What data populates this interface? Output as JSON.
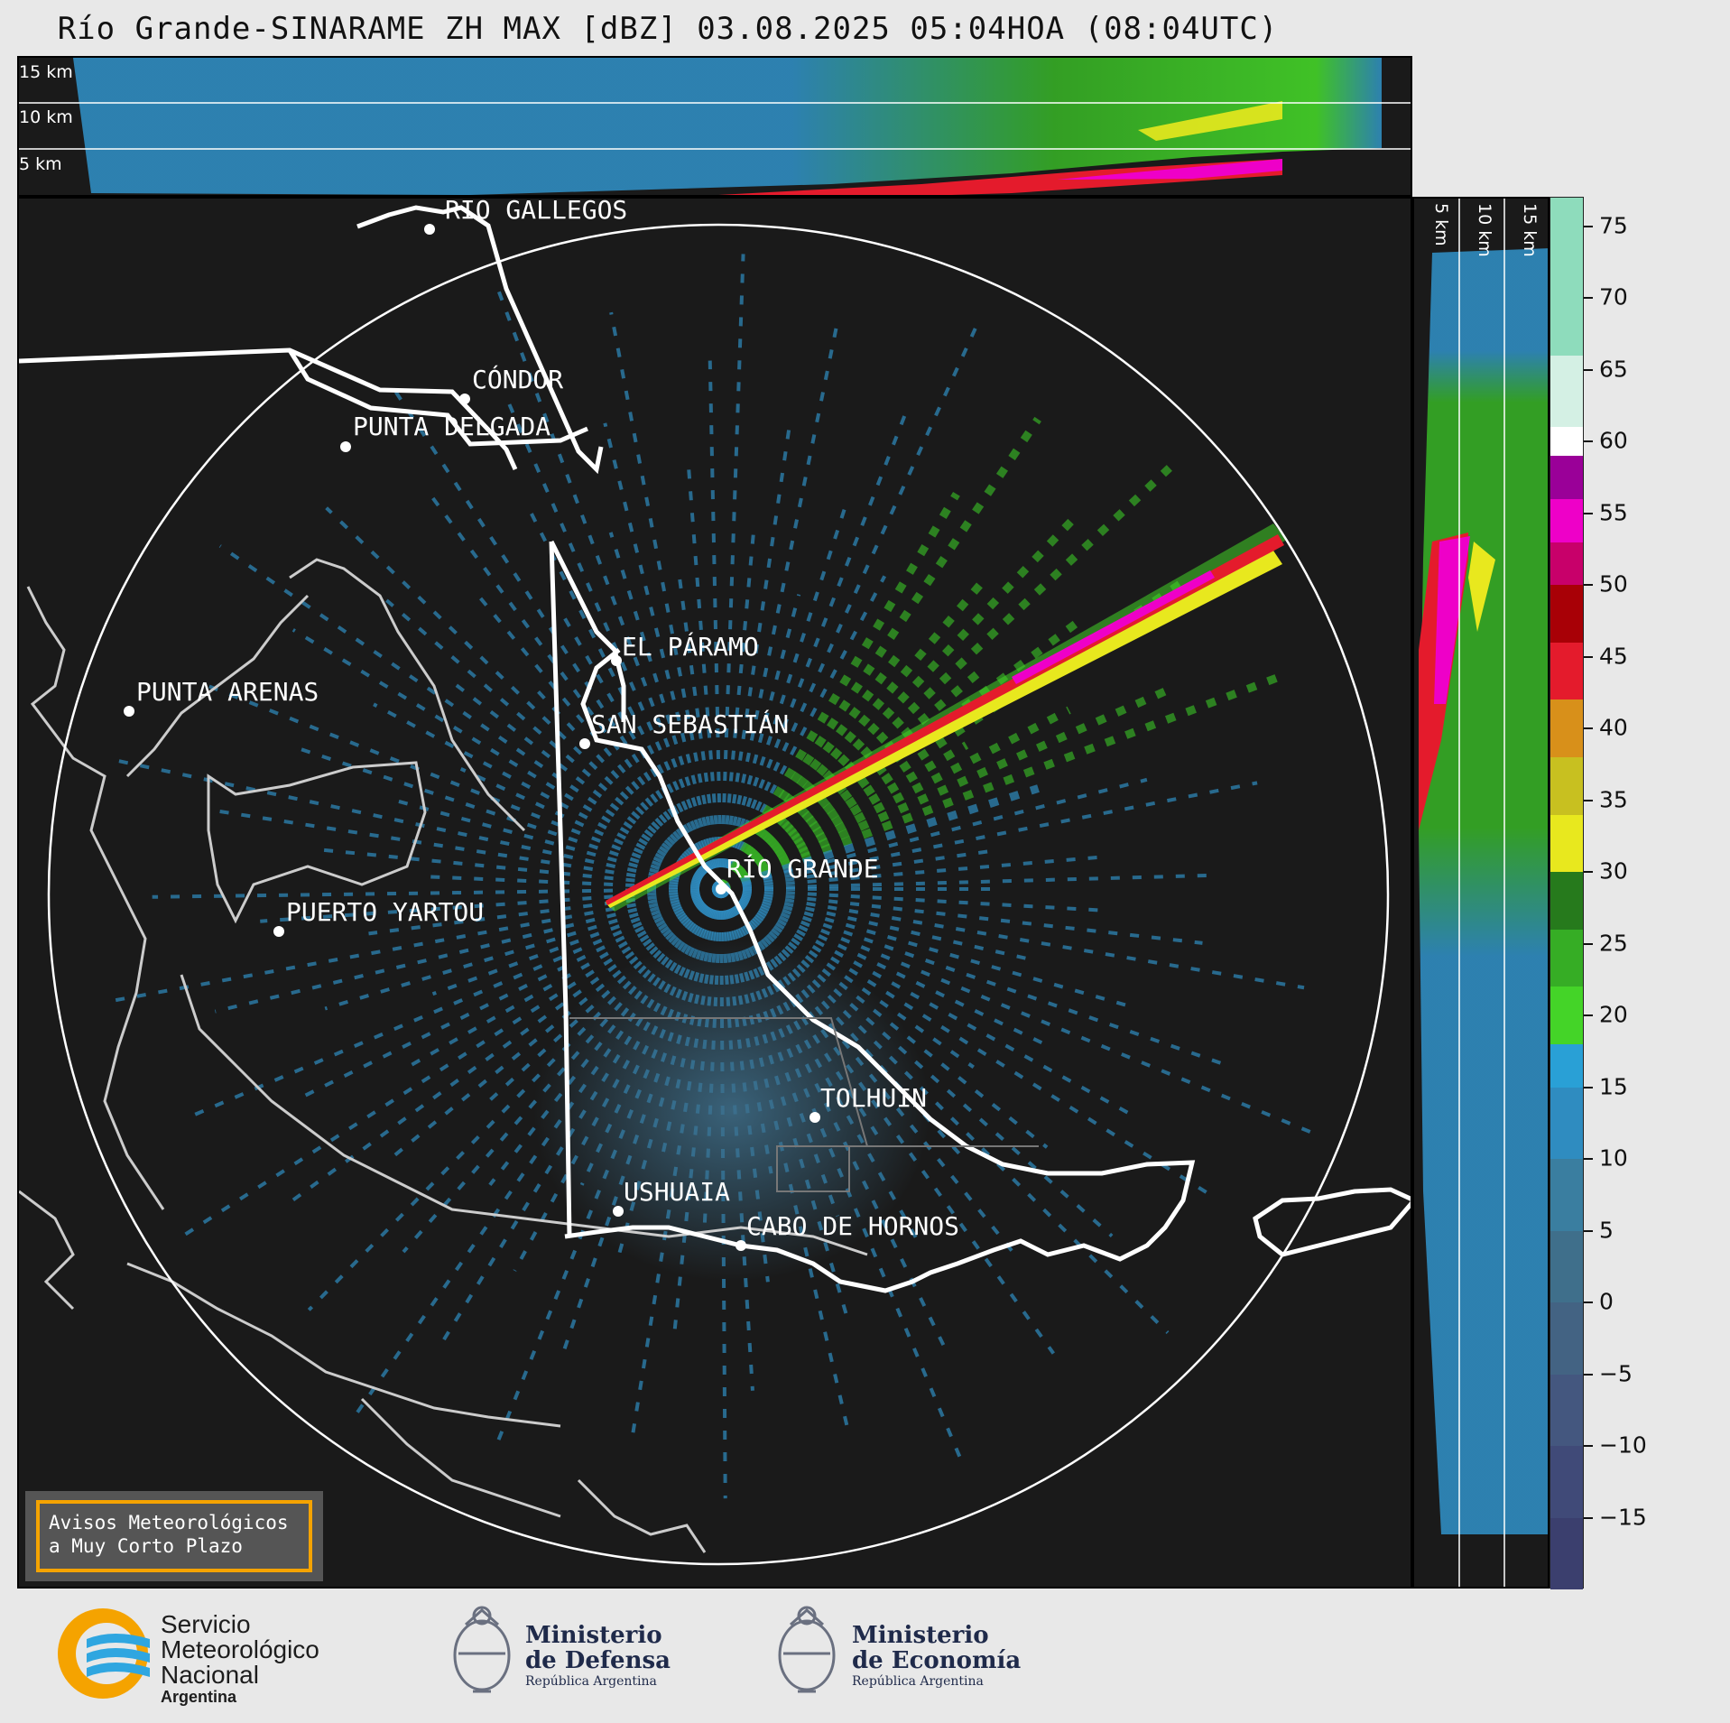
{
  "title": "Río Grande-SINARAME ZH MAX [dBZ] 03.08.2025 05:04HOA (08:04UTC)",
  "top_panel": {
    "height_labels": [
      "15 km",
      "10 km",
      "5 km"
    ]
  },
  "side_panel": {
    "height_labels": [
      "5 km",
      "10 km",
      "15 km"
    ]
  },
  "cities": [
    {
      "name": "RÍO GALLEGOS"
    },
    {
      "name": "CÓNDOR"
    },
    {
      "name": "PUNTA DELGADA"
    },
    {
      "name": "EL PÁRAMO"
    },
    {
      "name": "SAN SEBASTIÁN"
    },
    {
      "name": "PUNTA ARENAS"
    },
    {
      "name": "RÍO GRANDE"
    },
    {
      "name": "PUERTO YARTOU"
    },
    {
      "name": "TOLHUIN"
    },
    {
      "name": "USHUAIA"
    },
    {
      "name": "CABO DE HORNOS"
    }
  ],
  "colorbar": {
    "unit": "dBZ",
    "ticks": [
      "75",
      "70",
      "65",
      "60",
      "55",
      "50",
      "45",
      "40",
      "35",
      "30",
      "25",
      "20",
      "15",
      "10",
      "5",
      "0",
      "−5",
      "−10",
      "−15"
    ],
    "tick_values": [
      75,
      70,
      65,
      60,
      55,
      50,
      45,
      40,
      35,
      30,
      25,
      20,
      15,
      10,
      5,
      0,
      -5,
      -10,
      -15
    ],
    "range": [
      -20,
      77
    ],
    "segments": [
      {
        "from": -20,
        "to": -15,
        "color": "#3b3f6e"
      },
      {
        "from": -15,
        "to": -10,
        "color": "#404a78"
      },
      {
        "from": -10,
        "to": -5,
        "color": "#44577f"
      },
      {
        "from": -5,
        "to": 0,
        "color": "#436383"
      },
      {
        "from": 0,
        "to": 5,
        "color": "#3f6f8b"
      },
      {
        "from": 5,
        "to": 10,
        "color": "#3a7ea0"
      },
      {
        "from": 10,
        "to": 15,
        "color": "#2f8cc0"
      },
      {
        "from": 15,
        "to": 18,
        "color": "#29a0d6"
      },
      {
        "from": 18,
        "to": 22,
        "color": "#44d428"
      },
      {
        "from": 22,
        "to": 26,
        "color": "#36ad25"
      },
      {
        "from": 26,
        "to": 30,
        "color": "#267a1c"
      },
      {
        "from": 30,
        "to": 34,
        "color": "#e8e81e"
      },
      {
        "from": 34,
        "to": 38,
        "color": "#c8c020"
      },
      {
        "from": 38,
        "to": 42,
        "color": "#d8901a"
      },
      {
        "from": 42,
        "to": 46,
        "color": "#e41b2c"
      },
      {
        "from": 46,
        "to": 50,
        "color": "#a80006"
      },
      {
        "from": 50,
        "to": 53,
        "color": "#c8006a"
      },
      {
        "from": 53,
        "to": 56,
        "color": "#ee00c8"
      },
      {
        "from": 56,
        "to": 59,
        "color": "#9a0098"
      },
      {
        "from": 59,
        "to": 61,
        "color": "#ffffff"
      },
      {
        "from": 61,
        "to": 66,
        "color": "#d4f0e4"
      },
      {
        "from": 66,
        "to": 77,
        "color": "#8edcbc"
      }
    ]
  },
  "warning_box": {
    "line1": "Avisos Meteorológicos",
    "line2": "a Muy Corto Plazo"
  },
  "footer": {
    "smn": {
      "line1": "Servicio",
      "line2": "Meteorológico",
      "line3": "Nacional",
      "line4": "Argentina"
    },
    "defensa": {
      "line1": "Ministerio",
      "line2": "de Defensa",
      "line3": "República Argentina"
    },
    "economia": {
      "line1": "Ministerio",
      "line2": "de Economía",
      "line3": "República Argentina"
    }
  },
  "colors": {
    "background": "#1a1a1a",
    "coast": "#cccccc",
    "border": "#ffffff",
    "accent": "#f5a300"
  }
}
